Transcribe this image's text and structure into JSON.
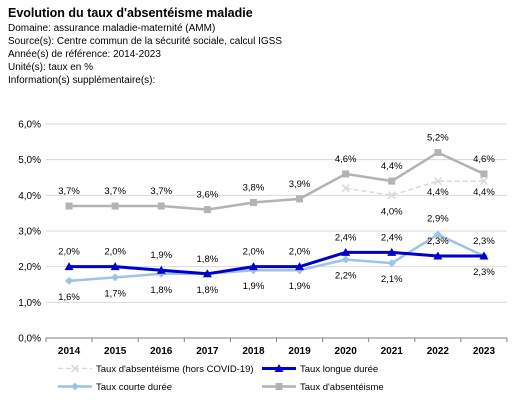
{
  "header": {
    "title": "Evolution du taux d'absentéisme maladie",
    "domain": "Domaine: assurance maladie-maternité (AMM)",
    "source": "Source(s): Centre commun de la sécurité sociale, calcul IGSS",
    "years": "Année(s) de référence: 2014-2023",
    "unit": "Unité(s): taux en %",
    "info": "Information(s) supplémentaire(s):"
  },
  "chart_data": {
    "type": "line",
    "categories": [
      "2014",
      "2015",
      "2016",
      "2017",
      "2018",
      "2019",
      "2020",
      "2021",
      "2022",
      "2023"
    ],
    "ylim": [
      0,
      6
    ],
    "yticks": [
      "0,0%",
      "1,0%",
      "2,0%",
      "3,0%",
      "4,0%",
      "5,0%",
      "6,0%"
    ],
    "grid": true,
    "legend_position": "bottom",
    "series": [
      {
        "name": "Taux d'absentéisme (hors COVID-19)",
        "color": "#d9d9d9",
        "style": "dashed",
        "marker": "x",
        "values": [
          null,
          null,
          null,
          null,
          null,
          null,
          4.2,
          4.0,
          4.4,
          4.4
        ],
        "labels": [
          "",
          "",
          "",
          "",
          "",
          "",
          "",
          "4,0%",
          "4,4%",
          "4,4%"
        ]
      },
      {
        "name": "Taux longue durée",
        "color": "#0000cc",
        "style": "solid",
        "marker": "triangle",
        "values": [
          2.0,
          2.0,
          1.9,
          1.8,
          2.0,
          2.0,
          2.4,
          2.4,
          2.3,
          2.3
        ],
        "labels": [
          "2,0%",
          "2,0%",
          "1,9%",
          "1,8%",
          "2,0%",
          "2,0%",
          "2,4%",
          "2,4%",
          "2,3%",
          "2,3%"
        ]
      },
      {
        "name": "Taux courte durée",
        "color": "#9dc3e6",
        "style": "solid",
        "marker": "diamond",
        "values": [
          1.6,
          1.7,
          1.8,
          1.8,
          1.9,
          1.9,
          2.2,
          2.1,
          2.9,
          2.3
        ],
        "labels": [
          "1,6%",
          "1,7%",
          "1,8%",
          "1,8%",
          "1,9%",
          "1,9%",
          "2,2%",
          "2,1%",
          "2,9%",
          "2,3%"
        ]
      },
      {
        "name": "Taux d'absentéisme",
        "color": "#b3b3b3",
        "style": "solid",
        "marker": "square",
        "values": [
          3.7,
          3.7,
          3.7,
          3.6,
          3.8,
          3.9,
          4.6,
          4.4,
          5.2,
          4.6
        ],
        "labels": [
          "3,7%",
          "3,7%",
          "3,7%",
          "3,6%",
          "3,8%",
          "3,9%",
          "4,6%",
          "4,4%",
          "5,2%",
          "4,6%"
        ]
      }
    ]
  }
}
